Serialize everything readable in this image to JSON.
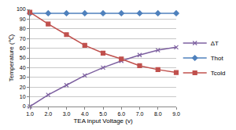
{
  "chart_data": {
    "type": "line",
    "x_label": "TEA input Voltage (v)",
    "y_label": "Temperature (℃)",
    "x": [
      1,
      2,
      3,
      4,
      5,
      6,
      7,
      8,
      9
    ],
    "series": [
      {
        "name": "ΔT",
        "color": "#7d60a0",
        "marker": "x",
        "values": [
          0,
          12,
          22,
          32,
          40,
          47,
          53,
          58,
          61
        ]
      },
      {
        "name": "Thot",
        "color": "#4f81bd",
        "marker": "diamond",
        "values": [
          96,
          96,
          96,
          96,
          96,
          96,
          96,
          96,
          96
        ]
      },
      {
        "name": "Tcold",
        "color": "#c0504d",
        "marker": "square",
        "values": [
          97,
          85,
          74,
          63,
          55,
          49,
          42,
          38,
          35
        ]
      }
    ],
    "xlim": [
      1,
      9
    ],
    "xticks": [
      {
        "value": 1,
        "label": "1.0"
      },
      {
        "value": 2,
        "label": "2.0"
      },
      {
        "value": 3,
        "label": "3.0"
      },
      {
        "value": 4,
        "label": "4.0"
      },
      {
        "value": 5,
        "label": "5.0"
      },
      {
        "value": 6,
        "label": "6.0"
      },
      {
        "value": 7,
        "label": "7.0"
      },
      {
        "value": 8,
        "label": "8.0"
      },
      {
        "value": 9,
        "label": "9.0"
      }
    ],
    "ylim": [
      0,
      100
    ],
    "yticks": [
      0,
      10,
      20,
      30,
      40,
      50,
      60,
      70,
      80,
      90,
      100
    ],
    "grid": true,
    "legend": "right"
  }
}
